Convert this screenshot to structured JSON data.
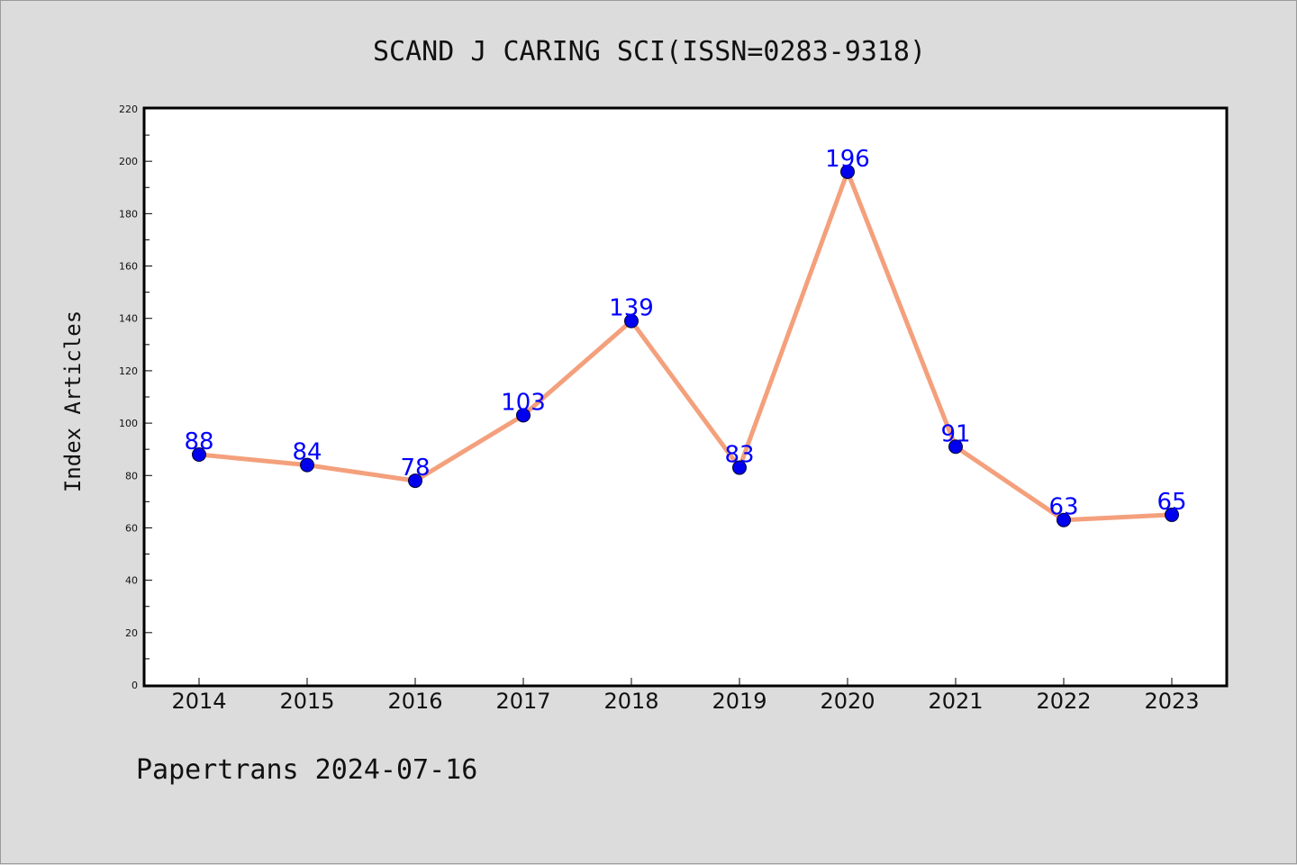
{
  "chart_data": {
    "type": "line",
    "title": "SCAND J CARING SCI(ISSN=0283-9318)",
    "ylabel": "Index Articles",
    "xlabel": "",
    "categories": [
      "2014",
      "2015",
      "2016",
      "2017",
      "2018",
      "2019",
      "2020",
      "2021",
      "2022",
      "2023"
    ],
    "values": [
      88,
      84,
      78,
      103,
      139,
      83,
      196,
      91,
      63,
      65
    ],
    "ylim": [
      0,
      220
    ],
    "yticks": [
      0,
      20,
      40,
      60,
      80,
      100,
      120,
      140,
      160,
      180,
      200,
      220
    ],
    "grid": false,
    "line_color": "#f4a07c",
    "marker_color": "#0000ee",
    "label_color": "#0000ff"
  },
  "footer": {
    "text": "Papertrans 2024-07-16"
  }
}
